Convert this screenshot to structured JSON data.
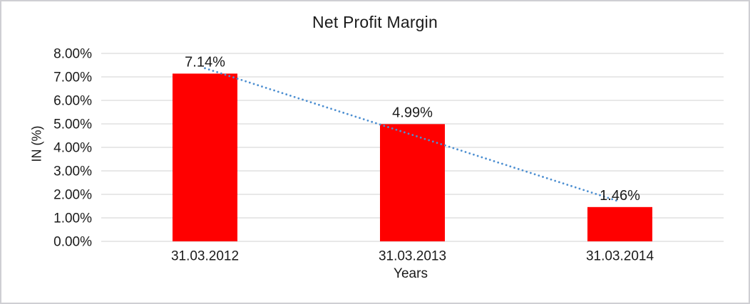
{
  "page": {
    "background": "#ffffff",
    "border_color": "#cfcfd3"
  },
  "chart_data": {
    "type": "bar",
    "title": "Net Profit Margin",
    "xlabel": "Years",
    "ylabel": "IN (%)",
    "categories": [
      "31.03.2012",
      "31.03.2013",
      "31.03.2014"
    ],
    "values": [
      7.14,
      4.99,
      1.46
    ],
    "data_labels": [
      "7.14%",
      "4.99%",
      "1.46%"
    ],
    "y_ticks": [
      "8.00%",
      "7.00%",
      "6.00%",
      "5.00%",
      "4.00%",
      "3.00%",
      "2.00%",
      "1.00%",
      "0.00%"
    ],
    "ylim": [
      0,
      8
    ],
    "y_tick_step": 1,
    "grid": true,
    "legend": "none",
    "bar_color": "#FF0000",
    "gridline_color": "#D9D9D9",
    "text_color": "#1a1a1a",
    "trendline": {
      "type": "linear",
      "style": "dotted",
      "color": "#4D8FD1"
    }
  }
}
